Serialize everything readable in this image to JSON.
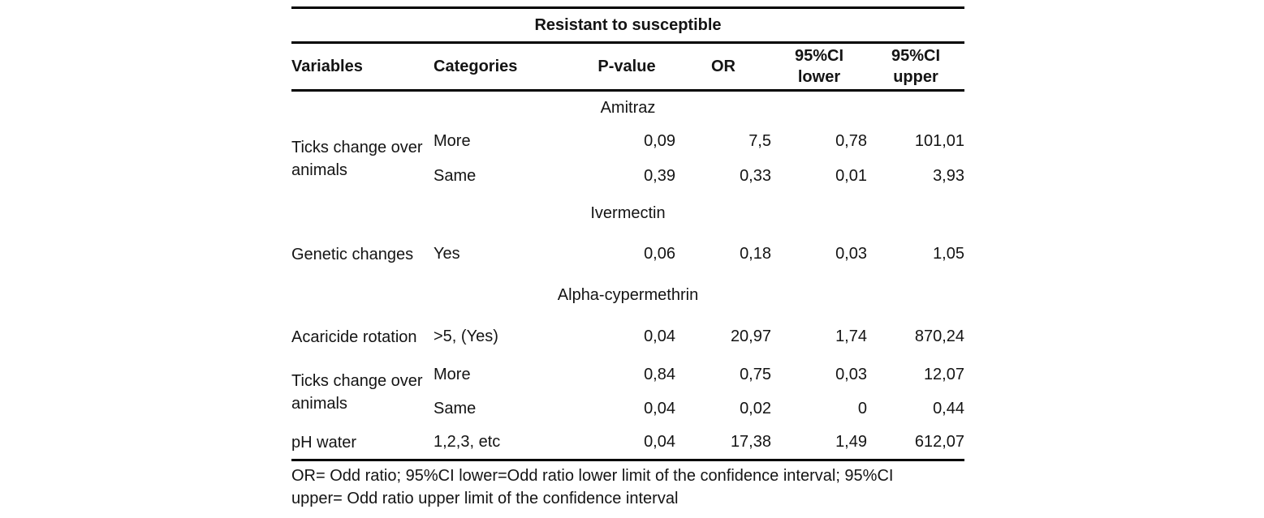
{
  "table": {
    "title": "Resistant to susceptible",
    "headers": {
      "variables": "Variables",
      "categories": "Categories",
      "p_value": "P-value",
      "or": "OR",
      "ci_lower_line1": "95%CI",
      "ci_lower_line2": "lower",
      "ci_upper_line1": "95%CI",
      "ci_upper_line2": "upper"
    },
    "sections": [
      {
        "name": "Amitraz",
        "rows": [
          {
            "variable": "Ticks change over animals",
            "category": "More",
            "p_value": "0,09",
            "or": "7,5",
            "ci_lower": "0,78",
            "ci_upper": "101,01"
          },
          {
            "category": "Same",
            "p_value": "0,39",
            "or": "0,33",
            "ci_lower": "0,01",
            "ci_upper": "3,93"
          }
        ]
      },
      {
        "name": "Ivermectin",
        "rows": [
          {
            "variable": "Genetic changes",
            "category": "Yes",
            "p_value": "0,06",
            "or": "0,18",
            "ci_lower": "0,03",
            "ci_upper": "1,05"
          }
        ]
      },
      {
        "name": "Alpha-cypermethrin",
        "rows": [
          {
            "variable": "Acaricide rotation",
            "category": ">5, (Yes)",
            "p_value": "0,04",
            "or": "20,97",
            "ci_lower": "1,74",
            "ci_upper": "870,24"
          },
          {
            "variable": "Ticks change over animals",
            "category": "More",
            "p_value": "0,84",
            "or": "0,75",
            "ci_lower": "0,03",
            "ci_upper": "12,07"
          },
          {
            "category": "Same",
            "p_value": "0,04",
            "or": "0,02",
            "ci_lower": "0",
            "ci_upper": "0,44"
          },
          {
            "variable": "pH water",
            "category": "1,2,3, etc",
            "p_value": "0,04",
            "or": "17,38",
            "ci_lower": "1,49",
            "ci_upper": "612,07"
          }
        ]
      }
    ],
    "footnote_line1": "OR= Odd ratio; 95%CI lower=Odd ratio lower limit of the confidence interval; 95%CI",
    "footnote_line2": "upper= Odd ratio upper limit of the confidence interval"
  },
  "colors": {
    "background": "#ffffff",
    "text": "#141414",
    "rule": "#000000"
  }
}
